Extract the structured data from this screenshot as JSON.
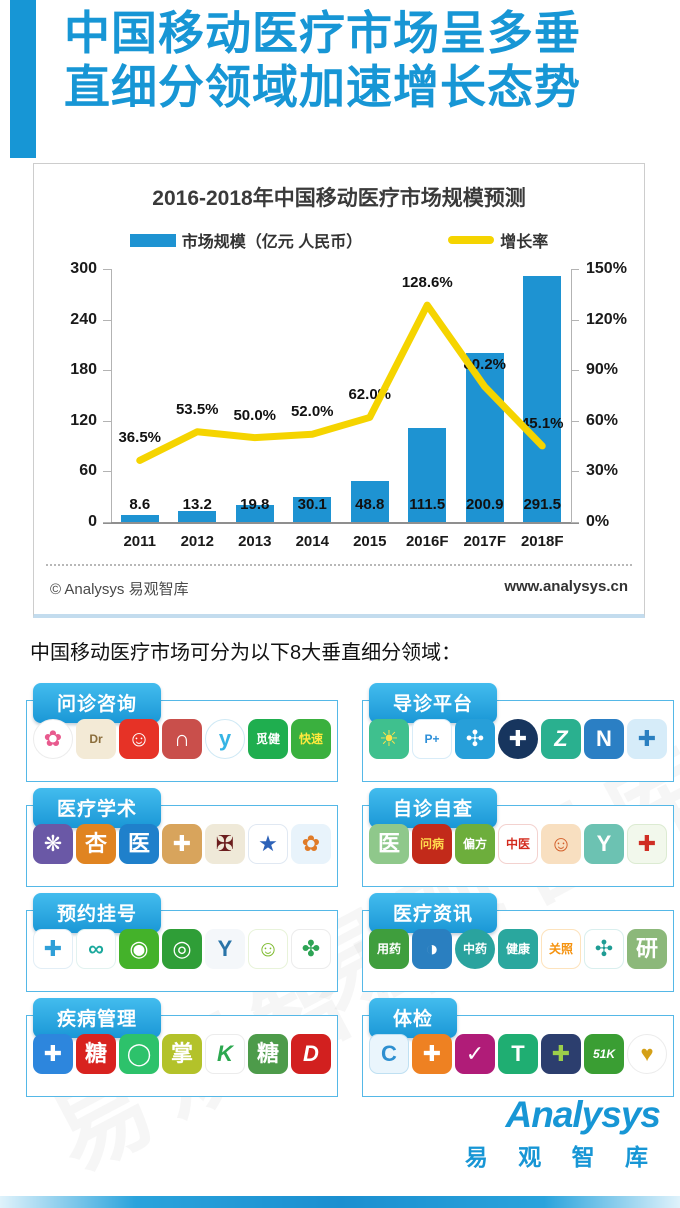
{
  "header": {
    "title_line1": "中国移动医疗市场呈多垂",
    "title_line2": "直细分领域加速增长态势"
  },
  "chart": {
    "title": "2016-2018年中国移动医疗市场规模预测",
    "legend": [
      {
        "label": "市场规模（亿元 人民币）",
        "color": "#1e93d2",
        "type": "bar"
      },
      {
        "label": "增长率",
        "color": "#f5d400",
        "type": "line"
      }
    ],
    "footer_left": "© Analysys 易观智库",
    "footer_right": "www.analysys.cn"
  },
  "chart_data": {
    "type": "bar+line combo",
    "title": "2016-2018年中国移动医疗市场规模预测",
    "categories": [
      "2011",
      "2012",
      "2013",
      "2014",
      "2015",
      "2016F",
      "2017F",
      "2018F"
    ],
    "series": [
      {
        "name": "市场规模（亿元 人民币）",
        "type": "bar",
        "axis": "left",
        "color": "#1e93d2",
        "values": [
          8.6,
          13.2,
          19.8,
          30.1,
          48.8,
          111.5,
          200.9,
          291.5
        ],
        "labels": [
          "8.6",
          "13.2",
          "19.8",
          "30.1",
          "48.8",
          "111.5",
          "200.9",
          "291.5"
        ]
      },
      {
        "name": "增长率",
        "type": "line",
        "axis": "right",
        "color": "#f5d400",
        "values": [
          36.5,
          53.5,
          50.0,
          52.0,
          62.0,
          128.6,
          80.2,
          45.1
        ],
        "labels": [
          "36.5%",
          "53.5%",
          "50.0%",
          "52.0%",
          "62.0%",
          "128.6%",
          "80.2%",
          "45.1%"
        ]
      }
    ],
    "left_axis": {
      "min": 0,
      "max": 300,
      "tick_labels": [
        "0",
        "60",
        "120",
        "180",
        "240",
        "300"
      ]
    },
    "right_axis": {
      "min": 0,
      "max": 150,
      "tick_labels": [
        "0%",
        "30%",
        "60%",
        "90%",
        "120%",
        "150%"
      ]
    },
    "grid": false,
    "legend_position": "top"
  },
  "section": {
    "heading": "中国移动医疗市场可分为以下8大垂直细分领域："
  },
  "categories": [
    {
      "label": "问诊咨询",
      "apps": [
        {
          "glyph": "✿",
          "bg": "#ffffff",
          "fg": "#e85a8e",
          "shape": "circle",
          "border": "#ececec"
        },
        {
          "glyph": "Dr",
          "bg": "#f3ead6",
          "fg": "#8a6d3b",
          "small": true
        },
        {
          "glyph": "☺",
          "bg": "#e63226",
          "fg": "#ffffff"
        },
        {
          "glyph": "∩",
          "bg": "#c94f4b",
          "fg": "#ffffff"
        },
        {
          "glyph": "y",
          "bg": "#ffffff",
          "fg": "#35b4e4",
          "shape": "circle",
          "border": "#cfe9f5"
        },
        {
          "glyph": "觅健",
          "bg": "#1fae4f",
          "fg": "#ffffff",
          "small": true
        },
        {
          "glyph": "快速",
          "bg": "#3ab03e",
          "fg": "#ffe93d",
          "small": true
        }
      ]
    },
    {
      "label": "导诊平台",
      "apps": [
        {
          "glyph": "☀",
          "bg": "#3fc08e",
          "fg": "#ffe24a"
        },
        {
          "glyph": "P+",
          "bg": "#ffffff",
          "fg": "#2d8fd8",
          "border": "#d8ecf8",
          "small": true
        },
        {
          "glyph": "✣",
          "bg": "#279fd9",
          "fg": "#ffffff"
        },
        {
          "glyph": "✚",
          "bg": "#17355e",
          "fg": "#ffffff",
          "shape": "circle"
        },
        {
          "glyph": "Z",
          "bg": "#2ab08f",
          "fg": "#ffffff",
          "italic": true
        },
        {
          "glyph": "N",
          "bg": "#2b7fc4",
          "fg": "#ffffff"
        },
        {
          "glyph": "✚",
          "bg": "#d6ecf9",
          "fg": "#2a7fc0"
        }
      ]
    },
    {
      "label": "医疗学术",
      "apps": [
        {
          "glyph": "❋",
          "bg": "#6a58a6",
          "fg": "#ffffff"
        },
        {
          "glyph": "杏",
          "bg": "#e08421",
          "fg": "#ffffff"
        },
        {
          "glyph": "医",
          "bg": "#1f80cb",
          "fg": "#ffffff"
        },
        {
          "glyph": "✚",
          "bg": "#d8a45c",
          "fg": "#ffffff"
        },
        {
          "glyph": "✠",
          "bg": "#efe9d8",
          "fg": "#6b1d1d"
        },
        {
          "glyph": "★",
          "bg": "#ffffff",
          "fg": "#2d62b8",
          "border": "#e0e8f2"
        },
        {
          "glyph": "✿",
          "bg": "#e8f3fb",
          "fg": "#e07b28"
        }
      ]
    },
    {
      "label": "自诊自查",
      "apps": [
        {
          "glyph": "医",
          "bg": "#8fc88b",
          "fg": "#ffffff"
        },
        {
          "glyph": "问病",
          "bg": "#c22a1a",
          "fg": "#ffd84d",
          "small": true
        },
        {
          "glyph": "偏方",
          "bg": "#6dae3c",
          "fg": "#ffffff",
          "small": true
        },
        {
          "glyph": "中医",
          "bg": "#ffffff",
          "fg": "#d32b1e",
          "small": true,
          "border": "#f3d2cf"
        },
        {
          "glyph": "☺",
          "bg": "#f8dfc0",
          "fg": "#d35f2a"
        },
        {
          "glyph": "Y",
          "bg": "#6cc2b2",
          "fg": "#ffffff"
        },
        {
          "glyph": "✚",
          "bg": "#f2f8ec",
          "fg": "#cf2e24",
          "border": "#dcebd2"
        }
      ]
    },
    {
      "label": "预约挂号",
      "apps": [
        {
          "glyph": "✚",
          "bg": "#ffffff",
          "fg": "#2f9fd8",
          "border": "#e2eef6"
        },
        {
          "glyph": "∞",
          "bg": "#ffffff",
          "fg": "#1aa89c",
          "border": "#e2f2f0"
        },
        {
          "glyph": "◉",
          "bg": "#44b22a",
          "fg": "#ffffff"
        },
        {
          "glyph": "◎",
          "bg": "#2f9e37",
          "fg": "#ffffff"
        },
        {
          "glyph": "Y",
          "bg": "#f4f7fa",
          "fg": "#2a74a8"
        },
        {
          "glyph": "☺",
          "bg": "#ffffff",
          "fg": "#7cba2c",
          "border": "#e8f3da"
        },
        {
          "glyph": "✤",
          "bg": "#ffffff",
          "fg": "#2ea455",
          "border": "#ececec"
        }
      ]
    },
    {
      "label": "医疗资讯",
      "apps": [
        {
          "glyph": "用药",
          "bg": "#3f9e3d",
          "fg": "#ffffff",
          "small": true
        },
        {
          "glyph": "◑",
          "bg": "#2a7fc0",
          "fg": "#ffffff"
        },
        {
          "glyph": "中药",
          "bg": "#2aa39e",
          "fg": "#ffffff",
          "small": true,
          "shape": "circle"
        },
        {
          "glyph": "健康",
          "bg": "#2aa79e",
          "fg": "#ffffff",
          "small": true
        },
        {
          "glyph": "关照",
          "bg": "#ffffff",
          "fg": "#f5920e",
          "small": true,
          "border": "#fde3bd"
        },
        {
          "glyph": "✣",
          "bg": "#ffffff",
          "fg": "#1f9c94",
          "border": "#d9efee"
        },
        {
          "glyph": "研",
          "bg": "#8cb87a",
          "fg": "#ffffff"
        }
      ]
    },
    {
      "label": "疾病管理",
      "apps": [
        {
          "glyph": "✚",
          "bg": "#2d86dd",
          "fg": "#ffffff"
        },
        {
          "glyph": "糖",
          "bg": "#d8231f",
          "fg": "#ffffff"
        },
        {
          "glyph": "◯",
          "bg": "#2dc26b",
          "fg": "#ffffff"
        },
        {
          "glyph": "掌",
          "bg": "#b3c22a",
          "fg": "#ffffff"
        },
        {
          "glyph": "K",
          "bg": "#ffffff",
          "fg": "#2ca84f",
          "border": "#ececec",
          "italic": true
        },
        {
          "glyph": "糖",
          "bg": "#4d9b4a",
          "fg": "#ffffff"
        },
        {
          "glyph": "D",
          "bg": "#d2201f",
          "fg": "#ffffff",
          "italic": true
        }
      ]
    },
    {
      "label": "体检",
      "apps": [
        {
          "glyph": "C",
          "bg": "#eaf5fc",
          "fg": "#2e8fd0",
          "border": "#bfe0f2"
        },
        {
          "glyph": "✚",
          "bg": "#ee8122",
          "fg": "#ffffff"
        },
        {
          "glyph": "✓",
          "bg": "#b01c78",
          "fg": "#ffffff"
        },
        {
          "glyph": "T",
          "bg": "#1fae72",
          "fg": "#ffffff"
        },
        {
          "glyph": "✚",
          "bg": "#2c3e6e",
          "fg": "#9ccf4a"
        },
        {
          "glyph": "51K",
          "bg": "#3a9e33",
          "fg": "#ffffff",
          "small": true,
          "italic": true
        },
        {
          "glyph": "♥",
          "bg": "#ffffff",
          "fg": "#d4a017",
          "shape": "circle",
          "border": "#ececec"
        }
      ]
    }
  ],
  "watermark": "易观智库",
  "logo": {
    "en": "Analysys",
    "cn": "易 观 智 库"
  }
}
